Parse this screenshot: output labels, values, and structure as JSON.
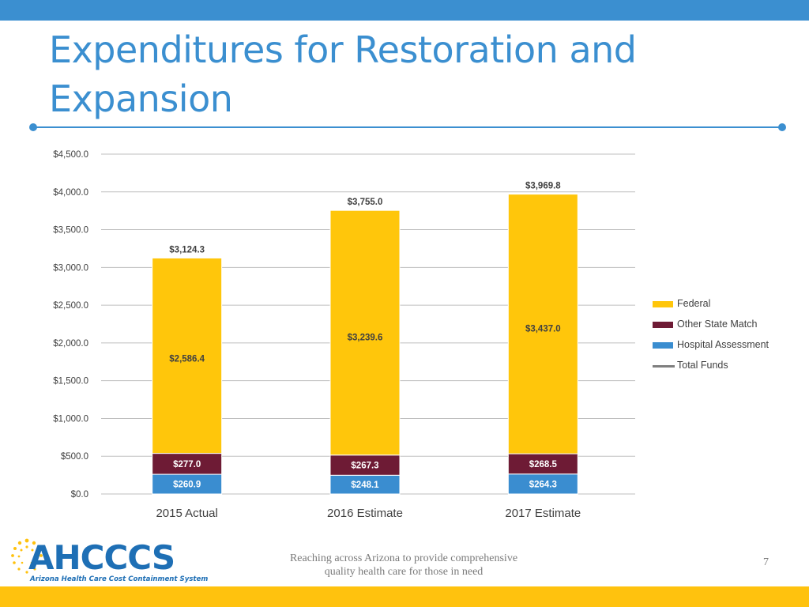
{
  "slide": {
    "title": "Expenditures for Restoration and Expansion",
    "tagline_line1": "Reaching across Arizona to provide comprehensive",
    "tagline_line2": "quality health care for those in need",
    "page_number": "7"
  },
  "logo": {
    "name": "AHCCCS",
    "subtitle": "Arizona Health Care Cost Containment System"
  },
  "colors": {
    "accent_blue": "#3b8fd0",
    "federal": "#ffc60b",
    "other_state_match": "#6e1b35",
    "hospital_assessment": "#3a8dd0",
    "total_funds": "#7f7f7f",
    "bottom_bar": "#ffc20e"
  },
  "chart_data": {
    "type": "bar",
    "stacked": true,
    "categories": [
      "2015 Actual",
      "2016 Estimate",
      "2017 Estimate"
    ],
    "series": [
      {
        "name": "Hospital Assessment",
        "values": [
          260.9,
          248.1,
          264.3
        ],
        "labels": [
          "$260.9",
          "$248.1",
          "$264.3"
        ]
      },
      {
        "name": "Other State Match",
        "values": [
          277.0,
          267.3,
          268.5
        ],
        "labels": [
          "$277.0",
          "$267.3",
          "$268.5"
        ]
      },
      {
        "name": "Federal",
        "values": [
          2586.4,
          3239.6,
          3437.0
        ],
        "labels": [
          "$2,586.4",
          "$3,239.6",
          "$3,437.0"
        ]
      },
      {
        "name": "Total Funds",
        "type": "line",
        "values": [
          3124.3,
          3755.0,
          3969.8
        ],
        "labels": [
          "$3,124.3",
          "$3,755.0",
          "$3,969.8"
        ]
      }
    ],
    "legend_order": [
      "Federal",
      "Other State Match",
      "Hospital Assessment",
      "Total Funds"
    ],
    "y_ticks": [
      "$0.0",
      "$500.0",
      "$1,000.0",
      "$1,500.0",
      "$2,000.0",
      "$2,500.0",
      "$3,000.0",
      "$3,500.0",
      "$4,000.0",
      "$4,500.0"
    ],
    "ylim": [
      0,
      4500
    ],
    "grid": true,
    "legend_position": "right"
  }
}
